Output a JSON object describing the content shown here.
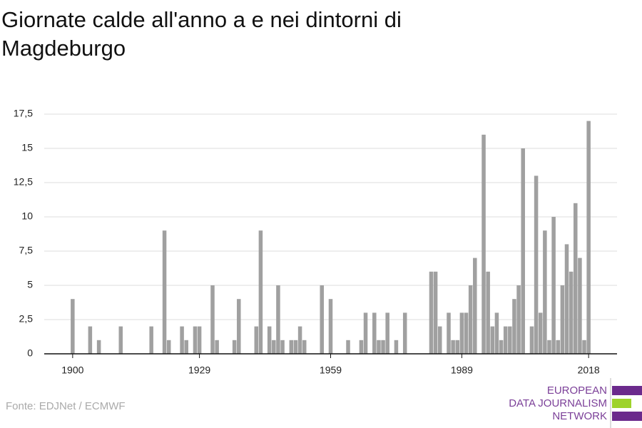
{
  "chart_data": {
    "type": "bar",
    "title": "Giornate calde all'anno a e nei dintorni di Magdeburgo",
    "source": "Fonte: EDJNet / ECMWF",
    "logo": [
      "EUROPEAN",
      "DATA JOURNALISM",
      "NETWORK"
    ],
    "x": [
      1900,
      1901,
      1902,
      1903,
      1904,
      1905,
      1906,
      1907,
      1908,
      1909,
      1910,
      1911,
      1912,
      1913,
      1914,
      1915,
      1916,
      1917,
      1918,
      1919,
      1920,
      1921,
      1922,
      1923,
      1924,
      1925,
      1926,
      1927,
      1928,
      1929,
      1930,
      1931,
      1932,
      1933,
      1934,
      1935,
      1936,
      1937,
      1938,
      1939,
      1940,
      1941,
      1942,
      1943,
      1944,
      1945,
      1946,
      1947,
      1948,
      1949,
      1950,
      1951,
      1952,
      1953,
      1954,
      1955,
      1956,
      1957,
      1958,
      1959,
      1960,
      1961,
      1962,
      1963,
      1964,
      1965,
      1966,
      1967,
      1968,
      1969,
      1970,
      1971,
      1972,
      1973,
      1974,
      1975,
      1976,
      1977,
      1978,
      1979,
      1980,
      1981,
      1982,
      1983,
      1984,
      1985,
      1986,
      1987,
      1988,
      1989,
      1990,
      1991,
      1992,
      1993,
      1994,
      1995,
      1996,
      1997,
      1998,
      1999,
      2000,
      2001,
      2002,
      2003,
      2004,
      2005,
      2006,
      2007,
      2008,
      2009,
      2010,
      2011,
      2012,
      2013,
      2014,
      2015,
      2016,
      2017,
      2018
    ],
    "values": [
      4,
      0,
      0,
      0,
      2,
      0,
      1,
      0,
      0,
      0,
      0,
      2,
      0,
      0,
      0,
      0,
      0,
      0,
      2,
      0,
      0,
      9,
      1,
      0,
      0,
      2,
      1,
      0,
      2,
      2,
      0,
      0,
      5,
      1,
      0,
      0,
      0,
      1,
      4,
      0,
      0,
      0,
      2,
      9,
      0,
      2,
      1,
      5,
      1,
      0,
      1,
      1,
      2,
      1,
      0,
      0,
      0,
      5,
      0,
      4,
      0,
      0,
      0,
      1,
      0,
      0,
      1,
      3,
      0,
      3,
      1,
      1,
      3,
      0,
      1,
      0,
      3,
      0,
      0,
      0,
      0,
      0,
      6,
      6,
      2,
      0,
      3,
      1,
      1,
      3,
      3,
      5,
      7,
      0,
      16,
      6,
      2,
      3,
      1,
      2,
      2,
      4,
      5,
      15,
      0,
      2,
      13,
      3,
      9,
      1,
      10,
      1,
      5,
      8,
      6,
      11,
      7,
      1,
      17
    ],
    "color": "#a0a0a0",
    "xlim": [
      1893.5,
      2024.5
    ],
    "xticks": [
      1900,
      1929,
      1959,
      1989,
      2018
    ],
    "ylim": [
      0,
      17.5
    ],
    "yticks": [
      0,
      {
        "value": 2.5,
        "label": "2,5"
      },
      5,
      {
        "value": 7.5,
        "label": "7,5"
      },
      10,
      {
        "value": 12.5,
        "label": "12,5"
      },
      15,
      {
        "value": 17.5,
        "label": "17,5"
      }
    ],
    "grid": true
  }
}
